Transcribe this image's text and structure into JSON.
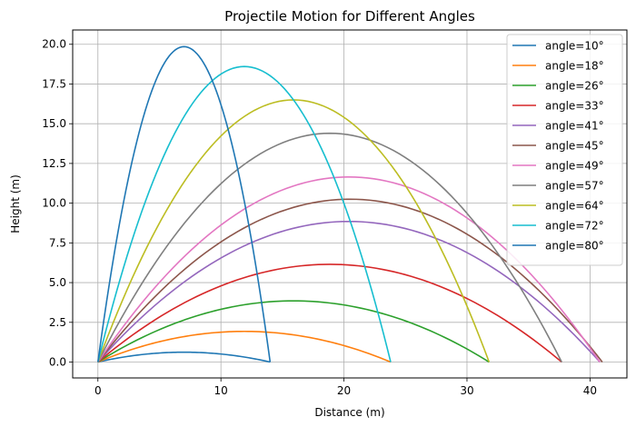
{
  "chart_data": {
    "type": "line",
    "title": "Projectile Motion for Different Angles",
    "xlabel": "Distance (m)",
    "ylabel": "Height (m)",
    "xlim": [
      -2.05,
      43.0
    ],
    "ylim": [
      -1.0,
      20.9
    ],
    "xticks": [
      0,
      10,
      20,
      30,
      40
    ],
    "xtick_labels": [
      "0",
      "10",
      "20",
      "30",
      "40"
    ],
    "yticks": [
      0,
      2.5,
      5,
      7.5,
      10,
      12.5,
      15,
      17.5,
      20
    ],
    "ytick_labels": [
      "0.0",
      "2.5",
      "5.0",
      "7.5",
      "10.0",
      "12.5",
      "15.0",
      "17.5",
      "20.0"
    ],
    "grid": true,
    "legend_position": "top-right",
    "series": [
      {
        "name": "angle=10°",
        "color": "#1f77b4",
        "angle_deg": 10,
        "range": 14.0,
        "max_height": 0.62
      },
      {
        "name": "angle=18°",
        "color": "#ff7f0e",
        "angle_deg": 18,
        "range": 23.8,
        "max_height": 1.93
      },
      {
        "name": "angle=26°",
        "color": "#2ca02c",
        "angle_deg": 26,
        "range": 31.8,
        "max_height": 3.85
      },
      {
        "name": "angle=33°",
        "color": "#d62728",
        "angle_deg": 33,
        "range": 37.7,
        "max_height": 6.15
      },
      {
        "name": "angle=41°",
        "color": "#9467bd",
        "angle_deg": 41,
        "range": 40.8,
        "max_height": 8.85
      },
      {
        "name": "angle=45°",
        "color": "#8c564b",
        "angle_deg": 45,
        "range": 41.0,
        "max_height": 10.25
      },
      {
        "name": "angle=49°",
        "color": "#e377c2",
        "angle_deg": 49,
        "range": 40.8,
        "max_height": 11.65
      },
      {
        "name": "angle=57°",
        "color": "#7f7f7f",
        "angle_deg": 57,
        "range": 37.7,
        "max_height": 14.4
      },
      {
        "name": "angle=64°",
        "color": "#bcbd22",
        "angle_deg": 64,
        "range": 31.8,
        "max_height": 16.5
      },
      {
        "name": "angle=72°",
        "color": "#17becf",
        "angle_deg": 72,
        "range": 23.8,
        "max_height": 18.6
      },
      {
        "name": "angle=80°",
        "color": "#1f77b4",
        "angle_deg": 80,
        "range": 14.0,
        "max_height": 19.85
      }
    ]
  }
}
